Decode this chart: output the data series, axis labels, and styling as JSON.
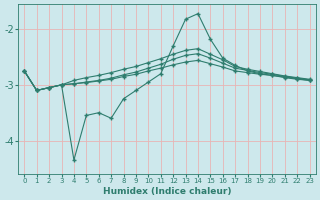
{
  "xlabel": "Humidex (Indice chaleur)",
  "bg_color": "#cde8ec",
  "grid_color": "#e8b4b4",
  "line_color": "#2e7d6e",
  "xlim": [
    -0.5,
    23.5
  ],
  "ylim": [
    -4.6,
    -1.55
  ],
  "yticks": [
    -4,
    -3,
    -2
  ],
  "xticks": [
    0,
    1,
    2,
    3,
    4,
    5,
    6,
    7,
    8,
    9,
    10,
    11,
    12,
    13,
    14,
    15,
    16,
    17,
    18,
    19,
    20,
    21,
    22,
    23
  ],
  "line_spike_x": [
    0,
    1,
    2,
    3,
    4,
    5,
    6,
    7,
    8,
    9,
    10,
    11,
    12,
    13,
    14,
    15,
    16,
    17,
    18,
    19,
    20,
    21,
    22,
    23
  ],
  "line_spike_y": [
    -2.75,
    -3.1,
    -3.05,
    -3.0,
    -4.35,
    -3.55,
    -3.5,
    -3.6,
    -3.25,
    -3.1,
    -2.95,
    -2.8,
    -2.3,
    -1.82,
    -1.72,
    -2.18,
    -2.52,
    -2.65,
    -2.75,
    -2.8,
    -2.83,
    -2.87,
    -2.9,
    -2.92
  ],
  "line_upper_x": [
    0,
    1,
    2,
    3,
    4,
    5,
    6,
    7,
    8,
    9,
    10,
    11,
    12,
    13,
    14,
    15,
    16,
    17,
    18,
    19,
    20,
    21,
    22,
    23
  ],
  "line_upper_y": [
    -2.75,
    -3.1,
    -3.05,
    -3.0,
    -2.92,
    -2.87,
    -2.83,
    -2.78,
    -2.72,
    -2.67,
    -2.6,
    -2.53,
    -2.45,
    -2.38,
    -2.35,
    -2.45,
    -2.55,
    -2.67,
    -2.72,
    -2.76,
    -2.8,
    -2.84,
    -2.87,
    -2.9
  ],
  "line_mid_x": [
    0,
    1,
    2,
    3,
    4,
    5,
    6,
    7,
    8,
    9,
    10,
    11,
    12,
    13,
    14,
    15,
    16,
    17,
    18,
    19,
    20,
    21,
    22,
    23
  ],
  "line_mid_y": [
    -2.75,
    -3.1,
    -3.05,
    -3.0,
    -2.98,
    -2.95,
    -2.92,
    -2.88,
    -2.82,
    -2.77,
    -2.7,
    -2.63,
    -2.54,
    -2.47,
    -2.44,
    -2.52,
    -2.61,
    -2.7,
    -2.74,
    -2.78,
    -2.81,
    -2.85,
    -2.88,
    -2.91
  ],
  "line_base_x": [
    0,
    1,
    2,
    3,
    4,
    5,
    6,
    7,
    8,
    9,
    10,
    11,
    12,
    13,
    14,
    15,
    16,
    17,
    18,
    19,
    20,
    21,
    22,
    23
  ],
  "line_base_y": [
    -2.75,
    -3.1,
    -3.05,
    -3.0,
    -2.98,
    -2.96,
    -2.93,
    -2.9,
    -2.85,
    -2.81,
    -2.75,
    -2.7,
    -2.64,
    -2.59,
    -2.56,
    -2.62,
    -2.68,
    -2.75,
    -2.78,
    -2.81,
    -2.83,
    -2.86,
    -2.89,
    -2.92
  ]
}
